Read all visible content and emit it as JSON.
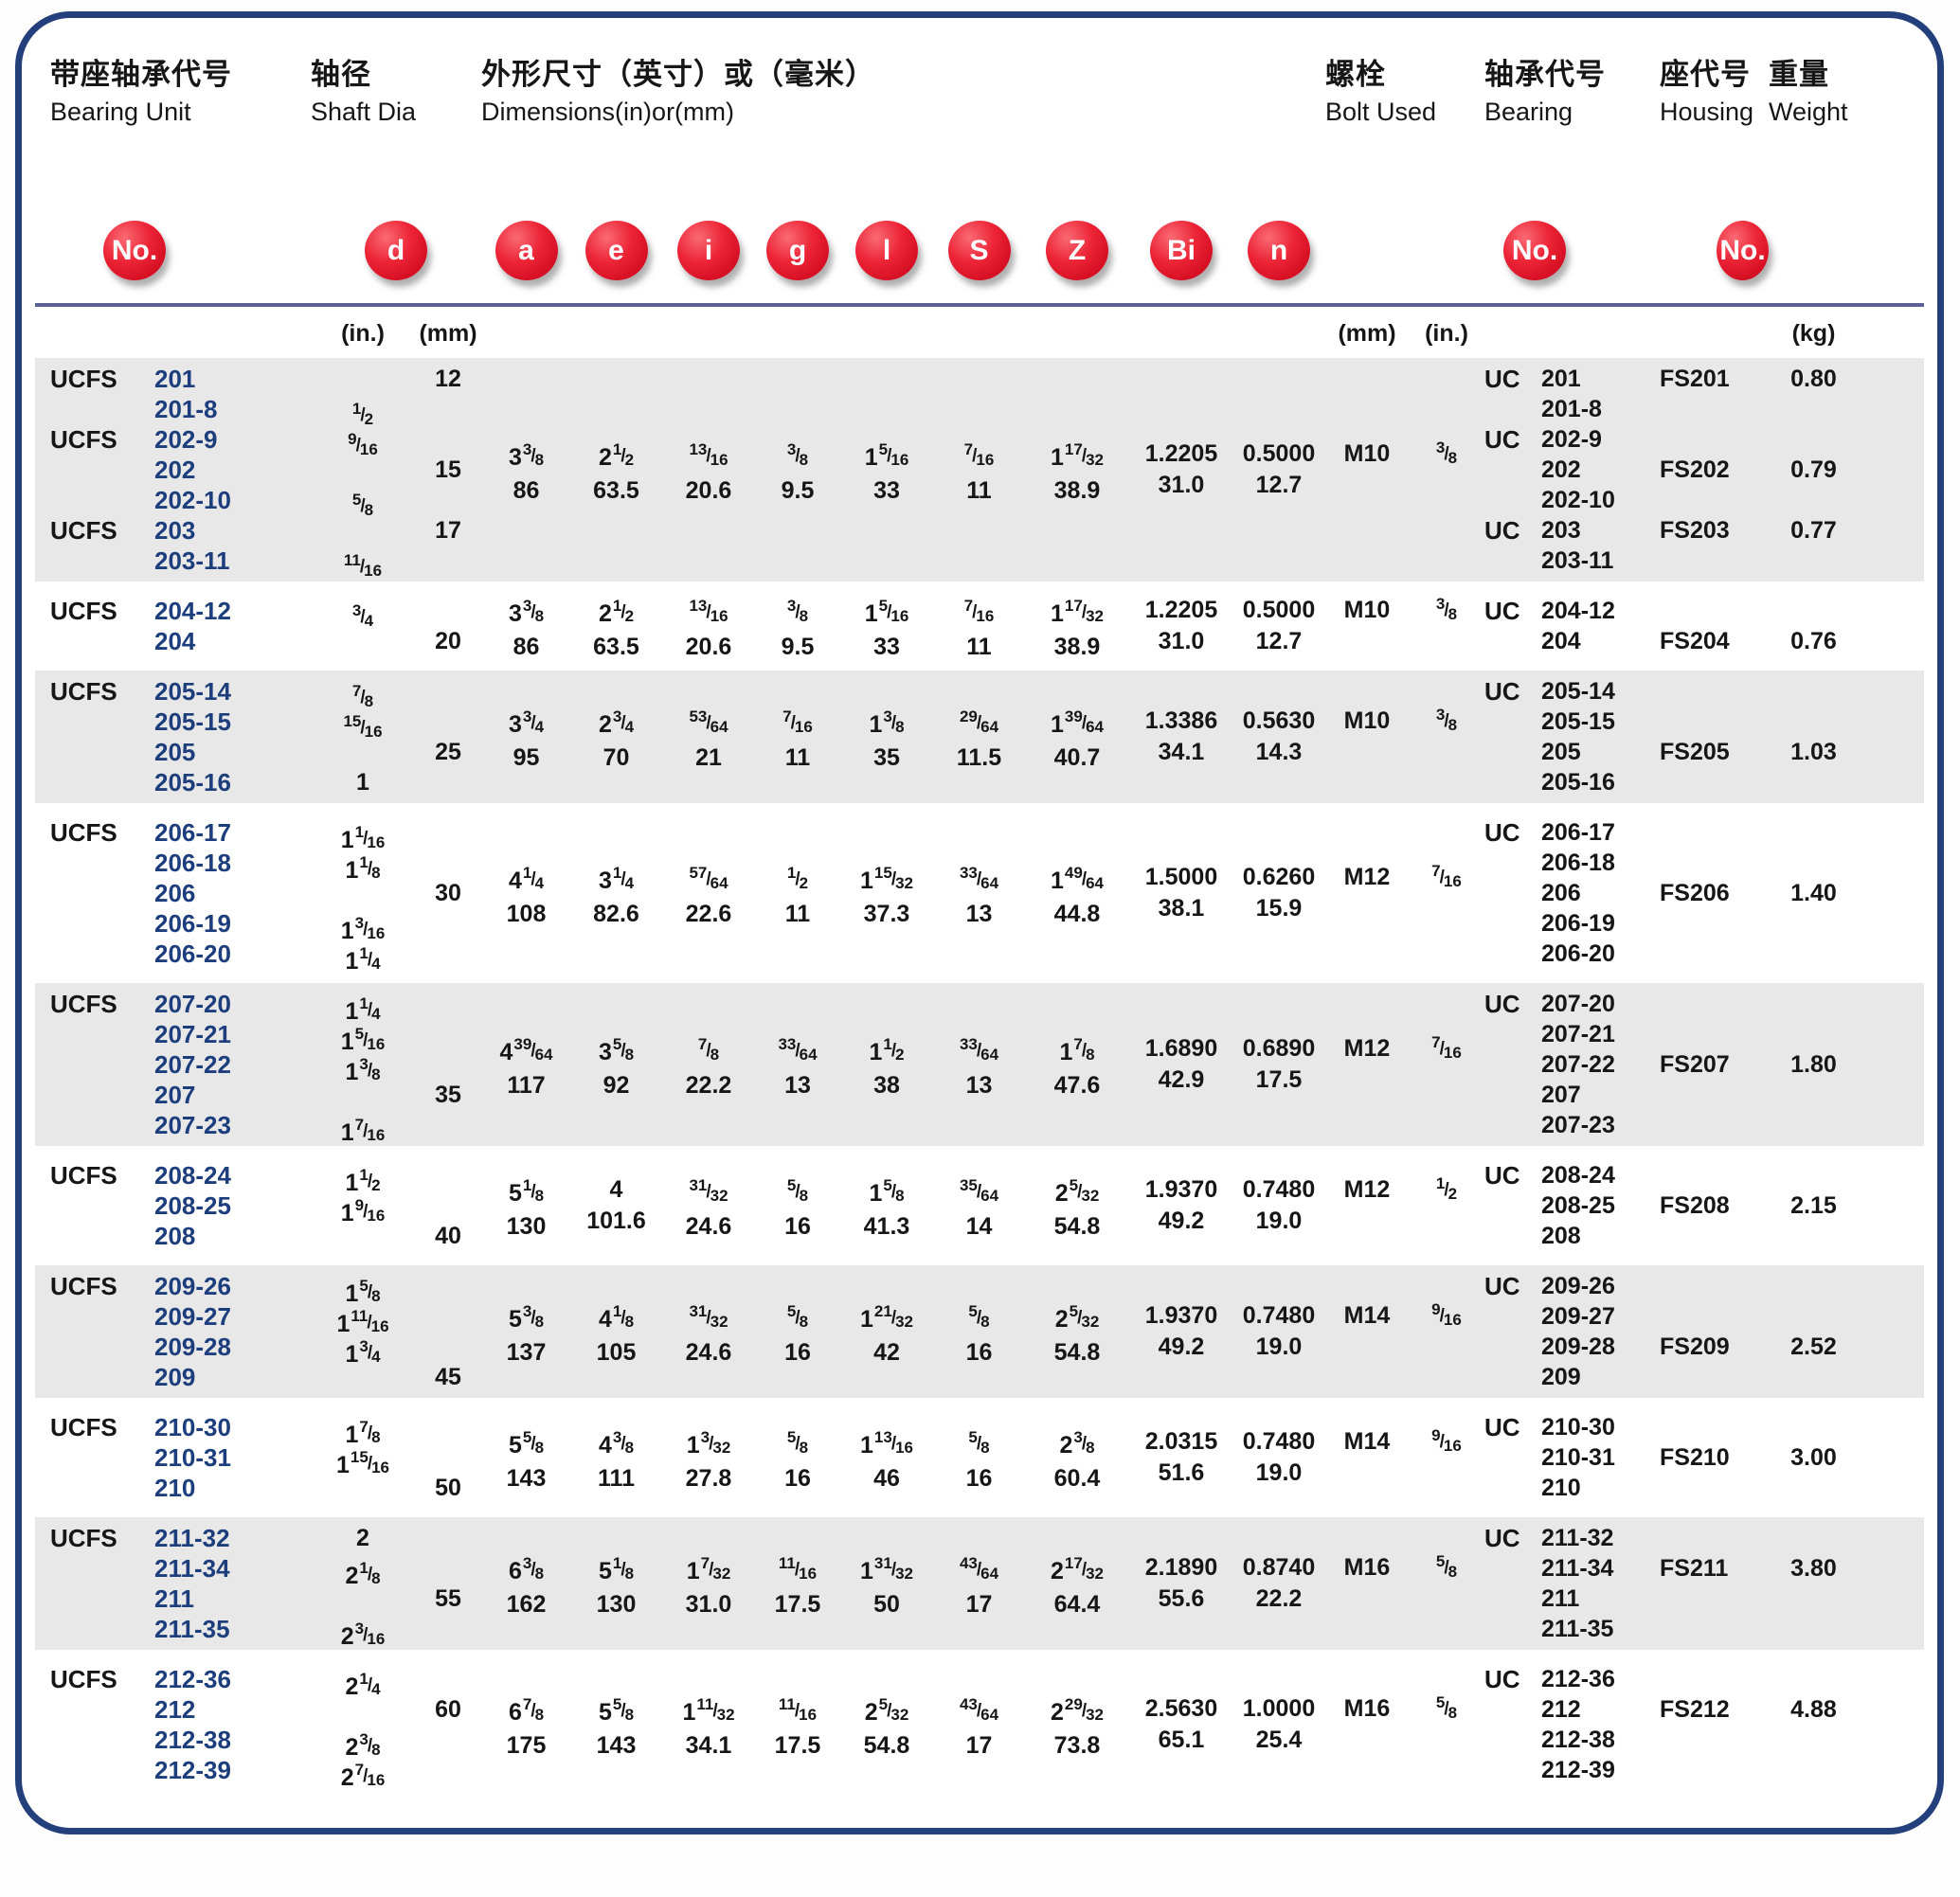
{
  "header": {
    "col_groups": [
      {
        "zh": "带座轴承代号",
        "en": "Bearing Unit"
      },
      {
        "zh": "轴径",
        "en": "Shaft Dia"
      },
      {
        "zh": "外形尺寸（英寸）或（毫米）",
        "en": "Dimensions(in)or(mm)"
      },
      {
        "zh": "螺栓",
        "en": "Bolt Used"
      },
      {
        "zh": "轴承代号",
        "en": "Bearing"
      },
      {
        "zh": "座代号",
        "en": "Housing"
      },
      {
        "zh": "重量",
        "en": "Weight"
      }
    ],
    "badges": [
      "No.",
      "d",
      "a",
      "e",
      "i",
      "g",
      "l",
      "S",
      "Z",
      "Bi",
      "n",
      "No.",
      "No."
    ],
    "units": {
      "shaft_in": "(in.)",
      "shaft_mm": "(mm)",
      "bolt_mm": "(mm)",
      "bolt_in": "(in.)",
      "weight": "(kg)"
    }
  },
  "colors": {
    "badge_red": "#e31c2e",
    "row_shade": "#e8e8e8",
    "panel_border": "#24407c",
    "unit_number_blue": "#1d3e7c",
    "divider": "#5c6195"
  },
  "blocks": [
    {
      "shade": true,
      "rows": [
        {
          "prefix": "UCFS",
          "unit": "201",
          "mm": "12",
          "uc": "UC",
          "bearing": "201",
          "housing": "FS201",
          "weight": "0.80"
        },
        {
          "unit": "201-8",
          "in": "1/2",
          "bearing": "201-8"
        },
        {
          "prefix": "UCFS",
          "unit": "202-9",
          "in": "9/16",
          "uc": "UC",
          "bearing": "202-9"
        },
        {
          "unit": "202",
          "mm": "15",
          "bearing": "202",
          "housing": "FS202",
          "weight": "0.79"
        },
        {
          "unit": "202-10",
          "in": "5/8",
          "bearing": "202-10"
        },
        {
          "prefix": "UCFS",
          "unit": "203",
          "mm": "17",
          "uc": "UC",
          "bearing": "203",
          "housing": "FS203",
          "weight": "0.77"
        },
        {
          "unit": "203-11",
          "in": "11/16",
          "bearing": "203-11"
        }
      ],
      "dims": {
        "a": [
          "3 3/8",
          "86"
        ],
        "e": [
          "2 1/2",
          "63.5"
        ],
        "i": [
          "13/16",
          "20.6"
        ],
        "g": [
          "3/8",
          "9.5"
        ],
        "l": [
          "1 5/16",
          "33"
        ],
        "S": [
          "7/16",
          "11"
        ],
        "Z": [
          "1 17/32",
          "38.9"
        ],
        "Bi": [
          "1.2205",
          "31.0"
        ],
        "n": [
          "0.5000",
          "12.7"
        ],
        "bolt_mm": "M10",
        "bolt_in": "3/8"
      }
    },
    {
      "shade": false,
      "rows": [
        {
          "prefix": "UCFS",
          "unit": "204-12",
          "in": "3/4",
          "uc": "UC",
          "bearing": "204-12"
        },
        {
          "unit": "204",
          "mm": "20",
          "bearing": "204",
          "housing": "FS204",
          "weight": "0.76"
        }
      ],
      "dims": {
        "a": [
          "3 3/8",
          "86"
        ],
        "e": [
          "2 1/2",
          "63.5"
        ],
        "i": [
          "13/16",
          "20.6"
        ],
        "g": [
          "3/8",
          "9.5"
        ],
        "l": [
          "1 5/16",
          "33"
        ],
        "S": [
          "7/16",
          "11"
        ],
        "Z": [
          "1 17/32",
          "38.9"
        ],
        "Bi": [
          "1.2205",
          "31.0"
        ],
        "n": [
          "0.5000",
          "12.7"
        ],
        "bolt_mm": "M10",
        "bolt_in": "3/8"
      }
    },
    {
      "shade": true,
      "rows": [
        {
          "prefix": "UCFS",
          "unit": "205-14",
          "in": "7/8",
          "uc": "UC",
          "bearing": "205-14"
        },
        {
          "unit": "205-15",
          "in": "15/16",
          "bearing": "205-15"
        },
        {
          "unit": "205",
          "mm": "25",
          "bearing": "205",
          "housing": "FS205",
          "weight": "1.03"
        },
        {
          "unit": "205-16",
          "in": "1",
          "bearing": "205-16"
        }
      ],
      "dims": {
        "a": [
          "3 3/4",
          "95"
        ],
        "e": [
          "2 3/4",
          "70"
        ],
        "i": [
          "53/64",
          "21"
        ],
        "g": [
          "7/16",
          "11"
        ],
        "l": [
          "1 3/8",
          "35"
        ],
        "S": [
          "29/64",
          "11.5"
        ],
        "Z": [
          "1 39/64",
          "40.7"
        ],
        "Bi": [
          "1.3386",
          "34.1"
        ],
        "n": [
          "0.5630",
          "14.3"
        ],
        "bolt_mm": "M10",
        "bolt_in": "3/8"
      }
    },
    {
      "shade": false,
      "rows": [
        {
          "prefix": "UCFS",
          "unit": "206-17",
          "in": "1 1/16",
          "uc": "UC",
          "bearing": "206-17"
        },
        {
          "unit": "206-18",
          "in": "1 1/8",
          "bearing": "206-18"
        },
        {
          "unit": "206",
          "mm": "30",
          "bearing": "206",
          "housing": "FS206",
          "weight": "1.40"
        },
        {
          "unit": "206-19",
          "in": "1 3/16",
          "bearing": "206-19"
        },
        {
          "unit": "206-20",
          "in": "1 1/4",
          "bearing": "206-20"
        }
      ],
      "dims": {
        "a": [
          "4 1/4",
          "108"
        ],
        "e": [
          "3 1/4",
          "82.6"
        ],
        "i": [
          "57/64",
          "22.6"
        ],
        "g": [
          "1/2",
          "11"
        ],
        "l": [
          "1 15/32",
          "37.3"
        ],
        "S": [
          "33/64",
          "13"
        ],
        "Z": [
          "1 49/64",
          "44.8"
        ],
        "Bi": [
          "1.5000",
          "38.1"
        ],
        "n": [
          "0.6260",
          "15.9"
        ],
        "bolt_mm": "M12",
        "bolt_in": "7/16"
      }
    },
    {
      "shade": true,
      "rows": [
        {
          "prefix": "UCFS",
          "unit": "207-20",
          "in": "1 1/4",
          "uc": "UC",
          "bearing": "207-20"
        },
        {
          "unit": "207-21",
          "in": "1 5/16",
          "bearing": "207-21"
        },
        {
          "unit": "207-22",
          "in": "1 3/8",
          "bearing": "207-22",
          "housing": "FS207",
          "weight": "1.80"
        },
        {
          "unit": "207",
          "mm": "35",
          "bearing": "207"
        },
        {
          "unit": "207-23",
          "in": "1 7/16",
          "bearing": "207-23"
        }
      ],
      "dims": {
        "a": [
          "4 39/64",
          "117"
        ],
        "e": [
          "3 5/8",
          "92"
        ],
        "i": [
          "7/8",
          "22.2"
        ],
        "g": [
          "33/64",
          "13"
        ],
        "l": [
          "1 1/2",
          "38"
        ],
        "S": [
          "33/64",
          "13"
        ],
        "Z": [
          "1 7/8",
          "47.6"
        ],
        "Bi": [
          "1.6890",
          "42.9"
        ],
        "n": [
          "0.6890",
          "17.5"
        ],
        "bolt_mm": "M12",
        "bolt_in": "7/16"
      }
    },
    {
      "shade": false,
      "rows": [
        {
          "prefix": "UCFS",
          "unit": "208-24",
          "in": "1 1/2",
          "uc": "UC",
          "bearing": "208-24"
        },
        {
          "unit": "208-25",
          "in": "1 9/16",
          "bearing": "208-25",
          "housing": "FS208",
          "weight": "2.15"
        },
        {
          "unit": "208",
          "mm": "40",
          "bearing": "208"
        }
      ],
      "dims": {
        "a": [
          "5 1/8",
          "130"
        ],
        "e": [
          "4",
          "101.6"
        ],
        "i": [
          "31/32",
          "24.6"
        ],
        "g": [
          "5/8",
          "16"
        ],
        "l": [
          "1 5/8",
          "41.3"
        ],
        "S": [
          "35/64",
          "14"
        ],
        "Z": [
          "2 5/32",
          "54.8"
        ],
        "Bi": [
          "1.9370",
          "49.2"
        ],
        "n": [
          "0.7480",
          "19.0"
        ],
        "bolt_mm": "M12",
        "bolt_in": "1/2"
      }
    },
    {
      "shade": true,
      "rows": [
        {
          "prefix": "UCFS",
          "unit": "209-26",
          "in": "1 5/8",
          "uc": "UC",
          "bearing": "209-26"
        },
        {
          "unit": "209-27",
          "in": "1 11/16",
          "bearing": "209-27"
        },
        {
          "unit": "209-28",
          "in": "1 3/4",
          "bearing": "209-28",
          "housing": "FS209",
          "weight": "2.52"
        },
        {
          "unit": "209",
          "mm": "45",
          "bearing": "209"
        }
      ],
      "dims": {
        "a": [
          "5 3/8",
          "137"
        ],
        "e": [
          "4 1/8",
          "105"
        ],
        "i": [
          "31/32",
          "24.6"
        ],
        "g": [
          "5/8",
          "16"
        ],
        "l": [
          "1 21/32",
          "42"
        ],
        "S": [
          "5/8",
          "16"
        ],
        "Z": [
          "2 5/32",
          "54.8"
        ],
        "Bi": [
          "1.9370",
          "49.2"
        ],
        "n": [
          "0.7480",
          "19.0"
        ],
        "bolt_mm": "M14",
        "bolt_in": "9/16"
      }
    },
    {
      "shade": false,
      "rows": [
        {
          "prefix": "UCFS",
          "unit": "210-30",
          "in": "1 7/8",
          "uc": "UC",
          "bearing": "210-30"
        },
        {
          "unit": "210-31",
          "in": "1 15/16",
          "bearing": "210-31",
          "housing": "FS210",
          "weight": "3.00"
        },
        {
          "unit": "210",
          "mm": "50",
          "bearing": "210"
        }
      ],
      "dims": {
        "a": [
          "5 5/8",
          "143"
        ],
        "e": [
          "4 3/8",
          "111"
        ],
        "i": [
          "1 3/32",
          "27.8"
        ],
        "g": [
          "5/8",
          "16"
        ],
        "l": [
          "1 13/16",
          "46"
        ],
        "S": [
          "5/8",
          "16"
        ],
        "Z": [
          "2 3/8",
          "60.4"
        ],
        "Bi": [
          "2.0315",
          "51.6"
        ],
        "n": [
          "0.7480",
          "19.0"
        ],
        "bolt_mm": "M14",
        "bolt_in": "9/16"
      }
    },
    {
      "shade": true,
      "rows": [
        {
          "prefix": "UCFS",
          "unit": "211-32",
          "in": "2",
          "uc": "UC",
          "bearing": "211-32"
        },
        {
          "unit": "211-34",
          "in": "2 1/8",
          "bearing": "211-34",
          "housing": "FS211",
          "weight": "3.80"
        },
        {
          "unit": "211",
          "mm": "55",
          "bearing": "211"
        },
        {
          "unit": "211-35",
          "in": "2 3/16",
          "bearing": "211-35"
        }
      ],
      "dims": {
        "a": [
          "6 3/8",
          "162"
        ],
        "e": [
          "5 1/8",
          "130"
        ],
        "i": [
          "1 7/32",
          "31.0"
        ],
        "g": [
          "11/16",
          "17.5"
        ],
        "l": [
          "1 31/32",
          "50"
        ],
        "S": [
          "43/64",
          "17"
        ],
        "Z": [
          "2 17/32",
          "64.4"
        ],
        "Bi": [
          "2.1890",
          "55.6"
        ],
        "n": [
          "0.8740",
          "22.2"
        ],
        "bolt_mm": "M16",
        "bolt_in": "5/8"
      }
    },
    {
      "shade": false,
      "rows": [
        {
          "prefix": "UCFS",
          "unit": "212-36",
          "in": "2 1/4",
          "uc": "UC",
          "bearing": "212-36"
        },
        {
          "unit": "212",
          "mm": "60",
          "bearing": "212",
          "housing": "FS212",
          "weight": "4.88"
        },
        {
          "unit": "212-38",
          "in": "2 3/8",
          "bearing": "212-38"
        },
        {
          "unit": "212-39",
          "in": "2 7/16",
          "bearing": "212-39"
        }
      ],
      "dims": {
        "a": [
          "6 7/8",
          "175"
        ],
        "e": [
          "5 5/8",
          "143"
        ],
        "i": [
          "1 11/32",
          "34.1"
        ],
        "g": [
          "11/16",
          "17.5"
        ],
        "l": [
          "2 5/32",
          "54.8"
        ],
        "S": [
          "43/64",
          "17"
        ],
        "Z": [
          "2 29/32",
          "73.8"
        ],
        "Bi": [
          "2.5630",
          "65.1"
        ],
        "n": [
          "1.0000",
          "25.4"
        ],
        "bolt_mm": "M16",
        "bolt_in": "5/8"
      }
    }
  ]
}
